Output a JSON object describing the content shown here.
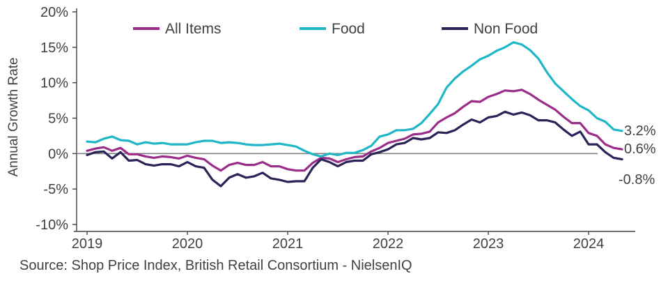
{
  "source": "Source: Shop Price Index, British Retail Consortium - NielsenIQ",
  "y_axis_title": "Annual Growth Rate",
  "chart_data": {
    "type": "line",
    "title": "",
    "ylabel": "Annual Growth Rate",
    "xlabel": "",
    "ylim": [
      -10,
      20
    ],
    "grid": false,
    "zero_line": true,
    "legend_position": "top",
    "axis_color": "#404040",
    "zero_line_color": "#7f7f7f",
    "x": [
      "2019-01",
      "2019-02",
      "2019-03",
      "2019-04",
      "2019-05",
      "2019-06",
      "2019-07",
      "2019-08",
      "2019-09",
      "2019-10",
      "2019-11",
      "2019-12",
      "2020-01",
      "2020-02",
      "2020-03",
      "2020-04",
      "2020-05",
      "2020-06",
      "2020-07",
      "2020-08",
      "2020-09",
      "2020-10",
      "2020-11",
      "2020-12",
      "2021-01",
      "2021-02",
      "2021-03",
      "2021-04",
      "2021-05",
      "2021-06",
      "2021-07",
      "2021-08",
      "2021-09",
      "2021-10",
      "2021-11",
      "2021-12",
      "2022-01",
      "2022-02",
      "2022-03",
      "2022-04",
      "2022-05",
      "2022-06",
      "2022-07",
      "2022-08",
      "2022-09",
      "2022-10",
      "2022-11",
      "2022-12",
      "2023-01",
      "2023-02",
      "2023-03",
      "2023-04",
      "2023-05",
      "2023-06",
      "2023-07",
      "2023-08",
      "2023-09",
      "2023-10",
      "2023-11",
      "2023-12",
      "2024-01",
      "2024-02",
      "2024-03",
      "2024-04",
      "2024-05"
    ],
    "series": [
      {
        "id": "all-items",
        "name": "All Items",
        "color": "#9b2d8a",
        "values": [
          0.4,
          0.7,
          0.9,
          0.4,
          0.8,
          -0.1,
          -0.1,
          -0.4,
          -0.6,
          -0.4,
          -0.5,
          -0.7,
          -0.3,
          -0.6,
          -0.8,
          -1.7,
          -2.4,
          -1.6,
          -1.3,
          -1.6,
          -1.6,
          -1.2,
          -1.8,
          -1.8,
          -2.2,
          -2.4,
          -2.4,
          -1.3,
          -0.6,
          -0.7,
          -1.2,
          -0.8,
          -0.5,
          -0.4,
          0.3,
          0.8,
          1.5,
          1.8,
          2.1,
          2.7,
          2.8,
          3.1,
          4.4,
          5.1,
          5.7,
          6.6,
          7.4,
          7.3,
          8.0,
          8.4,
          8.9,
          8.8,
          9.0,
          8.4,
          7.6,
          6.9,
          6.2,
          5.2,
          4.3,
          4.3,
          2.9,
          2.5,
          1.3,
          0.8,
          0.6
        ]
      },
      {
        "id": "food",
        "name": "Food",
        "color": "#1fb6c6",
        "values": [
          1.7,
          1.6,
          2.1,
          2.4,
          1.9,
          1.8,
          1.3,
          1.6,
          1.4,
          1.5,
          1.3,
          1.3,
          1.3,
          1.6,
          1.8,
          1.8,
          1.5,
          1.6,
          1.5,
          1.3,
          1.2,
          1.2,
          1.3,
          1.4,
          1.2,
          1.0,
          0.4,
          -0.1,
          -0.4,
          0.0,
          -0.2,
          0.1,
          0.1,
          0.5,
          1.1,
          2.4,
          2.7,
          3.3,
          3.3,
          3.5,
          4.3,
          5.6,
          7.0,
          9.3,
          10.6,
          11.6,
          12.4,
          13.3,
          13.8,
          14.5,
          15.0,
          15.7,
          15.4,
          14.6,
          13.4,
          11.5,
          9.9,
          8.8,
          7.7,
          6.7,
          6.1,
          5.0,
          4.5,
          3.4,
          3.2
        ]
      },
      {
        "id": "non-food",
        "name": "Non Food",
        "color": "#2a2358",
        "values": [
          -0.2,
          0.2,
          0.3,
          -0.7,
          0.2,
          -1.0,
          -0.9,
          -1.5,
          -1.7,
          -1.5,
          -1.5,
          -1.8,
          -1.2,
          -1.8,
          -2.0,
          -3.7,
          -4.6,
          -3.4,
          -2.9,
          -3.4,
          -3.2,
          -2.7,
          -3.5,
          -3.7,
          -4.0,
          -3.9,
          -3.9,
          -2.0,
          -0.8,
          -1.2,
          -1.8,
          -1.2,
          -1.0,
          -1.0,
          -0.1,
          0.2,
          0.6,
          1.3,
          1.5,
          2.2,
          2.0,
          2.2,
          3.0,
          2.9,
          3.3,
          4.1,
          4.8,
          4.4,
          5.1,
          5.3,
          5.9,
          5.5,
          5.8,
          5.4,
          4.7,
          4.7,
          4.4,
          3.4,
          2.5,
          3.1,
          1.3,
          1.3,
          0.2,
          -0.6,
          -0.8
        ]
      }
    ],
    "y_ticks": [
      {
        "value": 20,
        "label": "20%"
      },
      {
        "value": 15,
        "label": "15%"
      },
      {
        "value": 10,
        "label": "10%"
      },
      {
        "value": 5,
        "label": "5%"
      },
      {
        "value": 0,
        "label": "0%"
      },
      {
        "value": -5,
        "label": "-5%"
      },
      {
        "value": -10,
        "label": "-10%"
      }
    ],
    "x_ticks": [
      {
        "label": "2019",
        "month_index": 0
      },
      {
        "label": "2020",
        "month_index": 12
      },
      {
        "label": "2021",
        "month_index": 24
      },
      {
        "label": "2022",
        "month_index": 36
      },
      {
        "label": "2023",
        "month_index": 48
      },
      {
        "label": "2024",
        "month_index": 60
      }
    ],
    "end_labels": [
      {
        "series": "Food",
        "text": "3.2%"
      },
      {
        "series": "All Items",
        "text": "0.6%"
      },
      {
        "series": "Non Food",
        "text": "-0.8%"
      }
    ]
  }
}
